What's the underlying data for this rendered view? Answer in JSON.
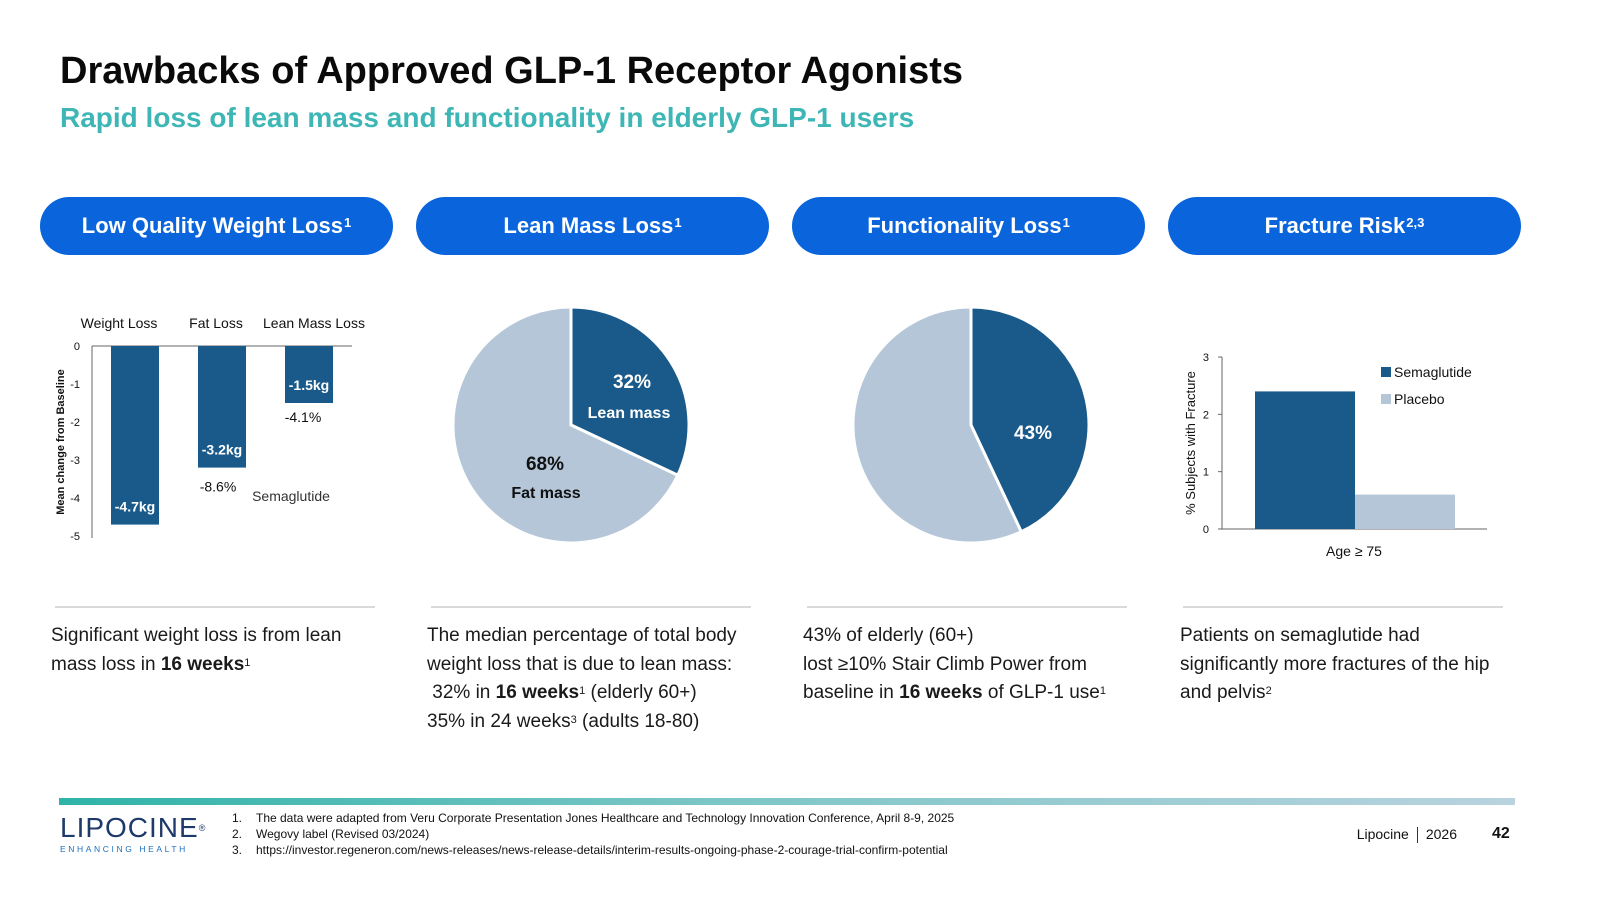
{
  "header": {
    "title": "Drawbacks of Approved GLP-1 Receptor Agonists",
    "subtitle": "Rapid loss of lean mass and functionality in elderly GLP-1 users"
  },
  "pills": [
    {
      "label": "Low Quality Weight Loss",
      "sup": "1"
    },
    {
      "label": "Lean Mass Loss",
      "sup": "1"
    },
    {
      "label": "Functionality Loss",
      "sup": "1"
    },
    {
      "label": "Fracture Risk",
      "sup": "2,3"
    }
  ],
  "colors": {
    "dark": "#1a5a8a",
    "light": "#b4c6d8",
    "pill": "#0a64dc",
    "accent": "#3db6b5"
  },
  "chart_data": [
    {
      "type": "bar",
      "categories": [
        "Weight Loss",
        "Fat Loss",
        "Lean Mass Loss"
      ],
      "values": [
        -4.7,
        -3.2,
        -1.5
      ],
      "bar_labels": [
        "-4.7kg",
        "-3.2kg",
        "-1.5kg"
      ],
      "pct_labels": [
        "",
        "-8.6%",
        "-4.1%"
      ],
      "series_label": "Semaglutide",
      "ylabel": "Mean change from Baseline",
      "ylim": [
        -5,
        0
      ],
      "yticks": [
        "0",
        "-1",
        "-2",
        "-3",
        "-4",
        "-5"
      ]
    },
    {
      "type": "pie",
      "slices": [
        {
          "pct": "32%",
          "label": "Lean mass",
          "value": 32
        },
        {
          "pct": "68%",
          "label": "Fat mass",
          "value": 68
        }
      ]
    },
    {
      "type": "pie",
      "slices": [
        {
          "pct": "43%",
          "label": "",
          "value": 43
        },
        {
          "pct": "",
          "label": "",
          "value": 57
        }
      ]
    },
    {
      "type": "bar",
      "categories": [
        "Age ≥ 75"
      ],
      "series": [
        {
          "name": "Semaglutide",
          "values": [
            2.4
          ]
        },
        {
          "name": "Placebo",
          "values": [
            0.6
          ]
        }
      ],
      "ylabel": "% Subjects with Fracture",
      "ylim": [
        0,
        3
      ],
      "yticks": [
        "0",
        "1",
        "2",
        "3"
      ],
      "legend": "top-right"
    }
  ],
  "descriptions": {
    "col1": {
      "a": "Significant weight loss is from lean",
      "b": "mass loss in ",
      "bold": "16 weeks",
      "sup": "1"
    },
    "col2": {
      "l1": "The median percentage of total body",
      "l2": "weight loss that is due to lean mass:",
      "l3a": " 32% in ",
      "l3bold": "16 weeks",
      "l3sup": "1",
      "l3c": " (elderly 60+)",
      "l4a": "35% in 24 weeks",
      "l4sup": "3",
      "l4c": " (adults 18-80)"
    },
    "col3": {
      "l1": "43% of elderly (60+)",
      "l2": "lost ≥10% Stair Climb Power from",
      "l3a": "baseline in ",
      "l3bold": "16 weeks",
      "l3c": " of GLP-1 use",
      "l3sup": "1"
    },
    "col4": {
      "l1": "Patients on semaglutide had",
      "l2": "significantly more fractures of the hip",
      "l3": "and pelvis",
      "sup": "2"
    }
  },
  "footer": {
    "logo_word": "LIPOCINE",
    "logo_mark": "®",
    "logo_tag": "ENHANCING HEALTH",
    "notes": [
      {
        "n": "1.",
        "text": "The data were adapted from Veru Corporate Presentation Jones Healthcare and Technology Innovation Conference, April 8-9, 2025"
      },
      {
        "n": "2.",
        "text": "Wegovy label (Revised 03/2024)"
      },
      {
        "n": "3.",
        "text": "https://investor.regeneron.com/news-releases/news-release-details/interim-results-ongoing-phase-2-courage-trial-confirm-potential"
      }
    ],
    "company": "Lipocine",
    "year": "2026",
    "page": "42"
  }
}
